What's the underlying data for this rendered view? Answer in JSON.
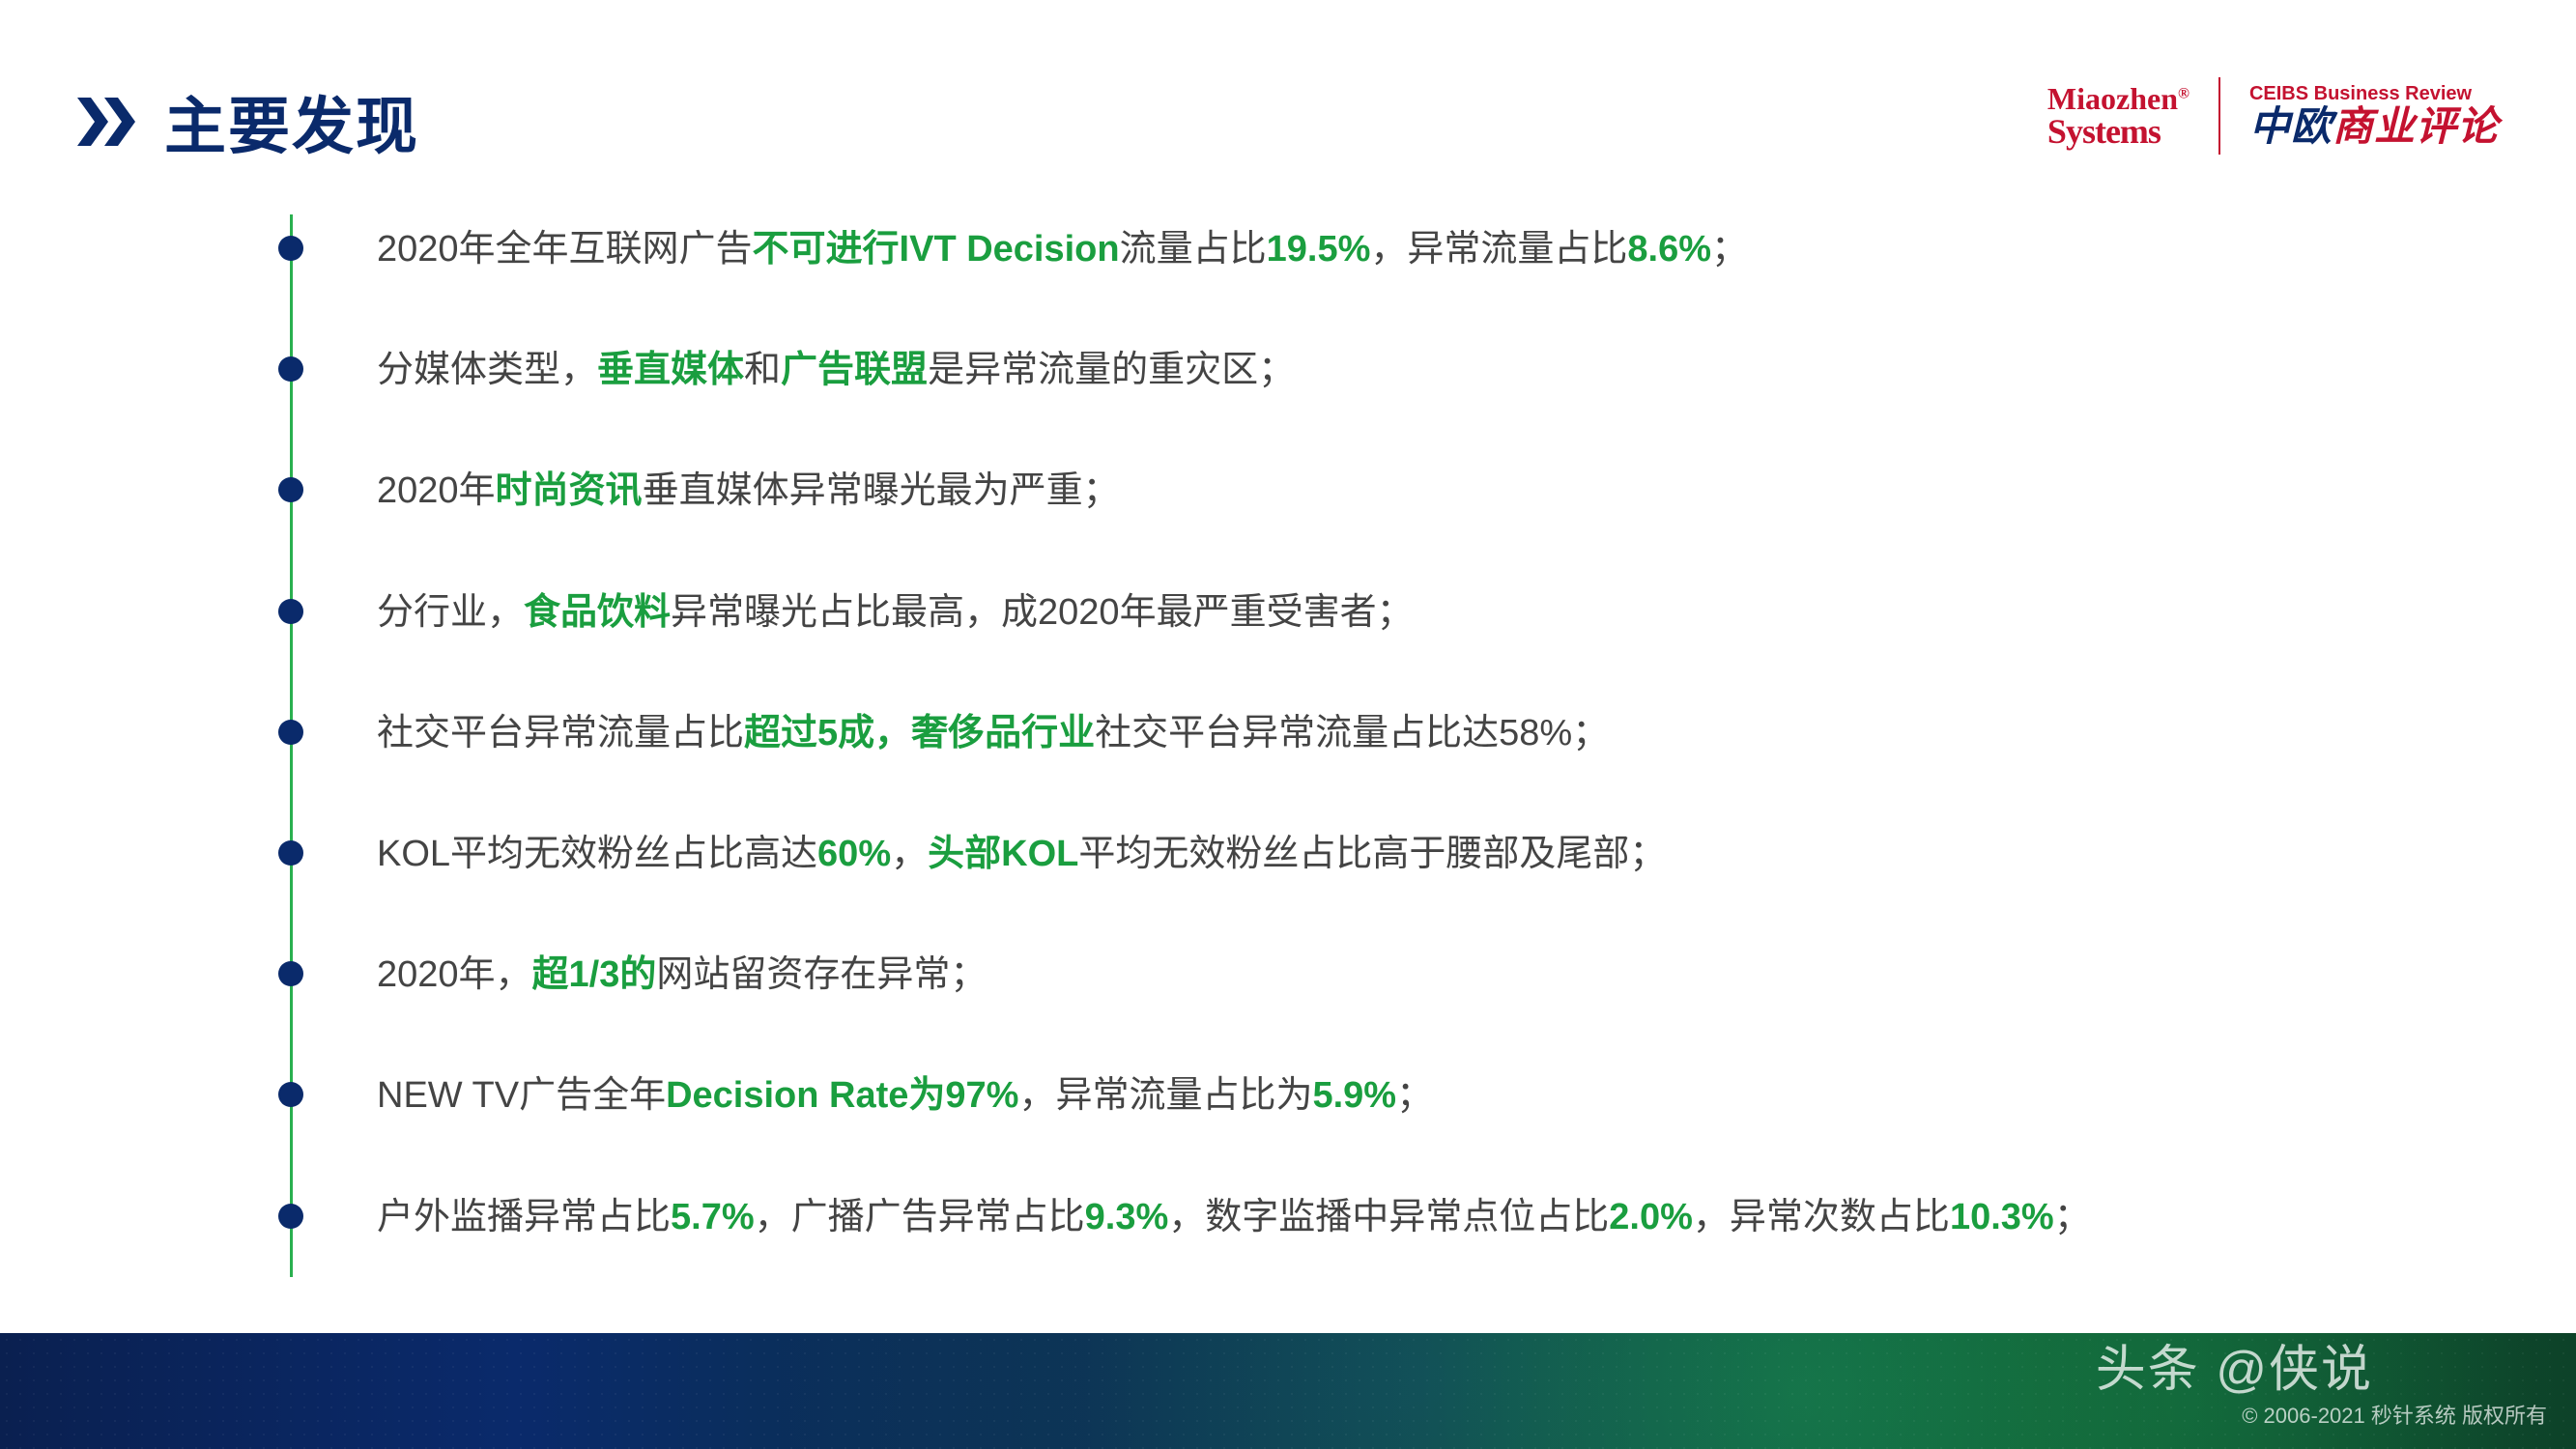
{
  "colors": {
    "accent_blue": "#0a2a6b",
    "accent_green": "#1a9e3f",
    "line_green": "#2ab04f",
    "brand_red": "#c41230",
    "text": "#444444",
    "bg": "#ffffff"
  },
  "title": "主要发现",
  "logos": {
    "miaozhen_line1": "Miaozhen",
    "miaozhen_line2": "Systems",
    "miaozhen_reg": "®",
    "ceibs_top": "CEIBS Business Review",
    "ceibs_zhong": "中欧",
    "ceibs_rest": "商业评论"
  },
  "bullets": [
    {
      "segments": [
        {
          "t": "2020年全年互联网广告",
          "c": ""
        },
        {
          "t": "不可进行IVT Decision",
          "c": "hl"
        },
        {
          "t": "流量占比",
          "c": ""
        },
        {
          "t": "19.5%",
          "c": "hl"
        },
        {
          "t": "，异常流量占比",
          "c": ""
        },
        {
          "t": "8.6%",
          "c": "hl"
        },
        {
          "t": "；",
          "c": ""
        }
      ]
    },
    {
      "segments": [
        {
          "t": "分媒体类型，",
          "c": ""
        },
        {
          "t": "垂直媒体",
          "c": "hl"
        },
        {
          "t": "和",
          "c": ""
        },
        {
          "t": "广告联盟",
          "c": "hl"
        },
        {
          "t": "是异常流量的重灾区；",
          "c": ""
        }
      ]
    },
    {
      "segments": [
        {
          "t": "2020年",
          "c": ""
        },
        {
          "t": "时尚资讯",
          "c": "hl"
        },
        {
          "t": "垂直媒体异常曝光最为严重；",
          "c": ""
        }
      ]
    },
    {
      "segments": [
        {
          "t": "分行业，",
          "c": ""
        },
        {
          "t": "食品饮料",
          "c": "hl"
        },
        {
          "t": "异常曝光占比最高，成2020年最严重受害者；",
          "c": ""
        }
      ]
    },
    {
      "segments": [
        {
          "t": "社交平台异常流量占比",
          "c": ""
        },
        {
          "t": "超过5成，奢侈品行业",
          "c": "hl"
        },
        {
          "t": "社交平台异常流量占比达58%；",
          "c": ""
        }
      ]
    },
    {
      "segments": [
        {
          "t": "KOL平均无效粉丝占比高达",
          "c": ""
        },
        {
          "t": "60%",
          "c": "hl"
        },
        {
          "t": "，",
          "c": ""
        },
        {
          "t": "头部KOL",
          "c": "hl"
        },
        {
          "t": "平均无效粉丝占比高于腰部及尾部；",
          "c": ""
        }
      ]
    },
    {
      "segments": [
        {
          "t": "2020年，",
          "c": ""
        },
        {
          "t": "超1/3的",
          "c": "hl"
        },
        {
          "t": "网站留资存在异常；",
          "c": ""
        }
      ]
    },
    {
      "segments": [
        {
          "t": "NEW TV广告全年",
          "c": ""
        },
        {
          "t": "Decision Rate为97%",
          "c": "hl"
        },
        {
          "t": "，异常流量占比为",
          "c": ""
        },
        {
          "t": "5.9%",
          "c": "hl"
        },
        {
          "t": "；",
          "c": ""
        }
      ]
    },
    {
      "segments": [
        {
          "t": "户外监播异常占比",
          "c": ""
        },
        {
          "t": "5.7%",
          "c": "hl"
        },
        {
          "t": "，广播广告异常占比",
          "c": ""
        },
        {
          "t": "9.3%",
          "c": "hl"
        },
        {
          "t": "，数字监播中异常点位占比",
          "c": ""
        },
        {
          "t": "2.0%",
          "c": "hl"
        },
        {
          "t": "，异常次数占比",
          "c": ""
        },
        {
          "t": "10.3%",
          "c": "hl"
        },
        {
          "t": "；",
          "c": ""
        }
      ]
    }
  ],
  "watermark": "头条 @侠说",
  "copyright": "© 2006-2021 秒针系统 版权所有"
}
